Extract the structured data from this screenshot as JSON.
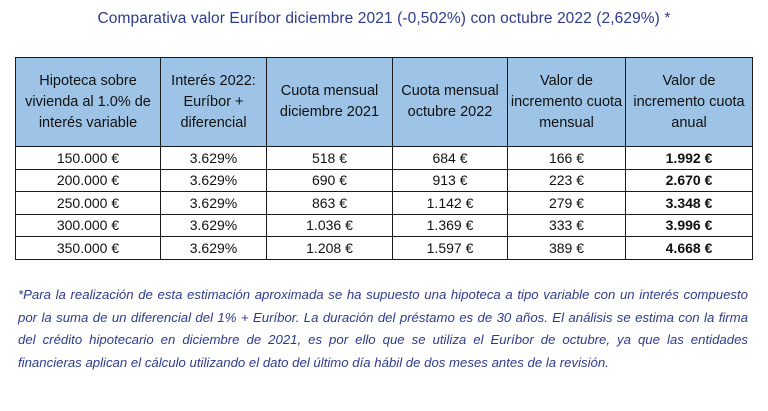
{
  "title": "Comparativa valor Euríbor diciembre 2021 (-0,502%) con octubre 2022 (2,629%) *",
  "table": {
    "headers": [
      "Hipoteca sobre vivienda al 1.0% de interés variable",
      "Interés 2022: Euríbor + diferencial",
      "Cuota mensual diciembre 2021",
      "Cuota mensual octubre 2022",
      "Valor de incremento cuota mensual",
      "Valor de incremento cuota anual"
    ],
    "rows": [
      [
        "150.000 €",
        "3.629%",
        "518 €",
        "684 €",
        "166 €",
        "1.992 €"
      ],
      [
        "200.000 €",
        "3.629%",
        "690 €",
        "913 €",
        "223 €",
        "2.670 €"
      ],
      [
        "250.000 €",
        "3.629%",
        "863 €",
        "1.142 €",
        "279 €",
        "3.348 €"
      ],
      [
        "300.000 €",
        "3.629%",
        "1.036 €",
        "1.369 €",
        "333 €",
        "3.996 €"
      ],
      [
        "350.000 €",
        "3.629%",
        "1.208 €",
        "1.597 €",
        "389 €",
        "4.668 €"
      ]
    ]
  },
  "footnote": "*Para la realización de esta estimación aproximada se ha supuesto una hipoteca a tipo variable con un interés compuesto por la suma de un diferencial del 1% + Euríbor. La duración del préstamo es de 30 años. El análisis se estima con la firma del crédito hipotecario en diciembre de 2021, es por ello que se utiliza el Euríbor de octubre, ya que las entidades financieras aplican el cálculo utilizando el dato del último día hábil de dos meses antes de la revisión.",
  "colors": {
    "header_bg": "#9dc3e6",
    "title_text": "#2e3b8c",
    "footnote_text": "#2e3b8c"
  }
}
